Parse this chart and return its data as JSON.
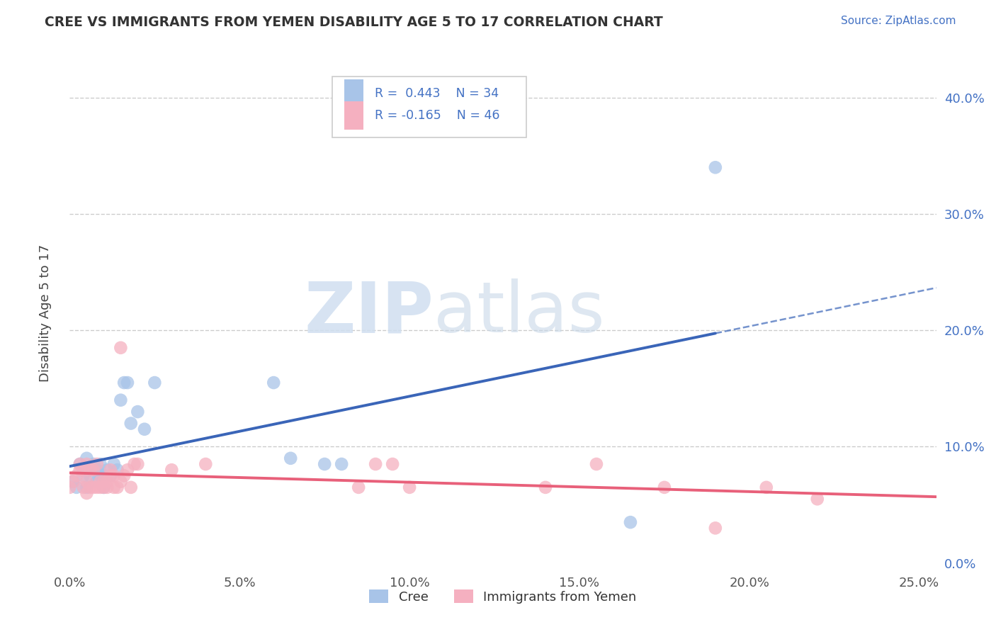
{
  "title": "CREE VS IMMIGRANTS FROM YEMEN DISABILITY AGE 5 TO 17 CORRELATION CHART",
  "source": "Source: ZipAtlas.com",
  "xlabel_ticks": [
    "0.0%",
    "5.0%",
    "10.0%",
    "15.0%",
    "20.0%",
    "25.0%"
  ],
  "ylabel_ticks": [
    "0.0%",
    "10.0%",
    "20.0%",
    "30.0%",
    "40.0%"
  ],
  "xlim": [
    0.0,
    0.255
  ],
  "ylim": [
    -0.005,
    0.435
  ],
  "cree_R": 0.443,
  "cree_N": 34,
  "yemen_R": -0.165,
  "yemen_N": 46,
  "cree_color": "#a8c4e8",
  "yemen_color": "#f5b0c0",
  "cree_line_color": "#3a65b8",
  "yemen_line_color": "#e8607a",
  "grid_color": "#cccccc",
  "background_color": "#ffffff",
  "cree_points_x": [
    0.001,
    0.002,
    0.003,
    0.004,
    0.004,
    0.005,
    0.005,
    0.006,
    0.006,
    0.007,
    0.007,
    0.008,
    0.008,
    0.009,
    0.009,
    0.01,
    0.01,
    0.011,
    0.012,
    0.013,
    0.014,
    0.015,
    0.016,
    0.017,
    0.018,
    0.02,
    0.022,
    0.025,
    0.06,
    0.065,
    0.075,
    0.08,
    0.165,
    0.19
  ],
  "cree_points_y": [
    0.07,
    0.065,
    0.085,
    0.075,
    0.08,
    0.065,
    0.09,
    0.075,
    0.08,
    0.08,
    0.085,
    0.07,
    0.08,
    0.075,
    0.085,
    0.065,
    0.075,
    0.08,
    0.075,
    0.085,
    0.08,
    0.14,
    0.155,
    0.155,
    0.12,
    0.13,
    0.115,
    0.155,
    0.155,
    0.09,
    0.085,
    0.085,
    0.035,
    0.34
  ],
  "yemen_points_x": [
    0.0,
    0.001,
    0.002,
    0.003,
    0.003,
    0.004,
    0.004,
    0.005,
    0.005,
    0.005,
    0.006,
    0.006,
    0.007,
    0.007,
    0.008,
    0.008,
    0.009,
    0.009,
    0.01,
    0.01,
    0.011,
    0.011,
    0.012,
    0.012,
    0.013,
    0.013,
    0.014,
    0.015,
    0.015,
    0.016,
    0.017,
    0.018,
    0.019,
    0.02,
    0.03,
    0.04,
    0.085,
    0.09,
    0.095,
    0.1,
    0.14,
    0.155,
    0.175,
    0.19,
    0.205,
    0.22
  ],
  "yemen_points_y": [
    0.065,
    0.07,
    0.075,
    0.08,
    0.085,
    0.065,
    0.08,
    0.06,
    0.07,
    0.085,
    0.065,
    0.08,
    0.065,
    0.08,
    0.065,
    0.085,
    0.065,
    0.07,
    0.065,
    0.07,
    0.065,
    0.07,
    0.075,
    0.08,
    0.065,
    0.075,
    0.065,
    0.07,
    0.185,
    0.075,
    0.08,
    0.065,
    0.085,
    0.085,
    0.08,
    0.085,
    0.065,
    0.085,
    0.085,
    0.065,
    0.065,
    0.085,
    0.065,
    0.03,
    0.065,
    0.055
  ],
  "legend_label1": "Cree",
  "legend_label2": "Immigrants from Yemen",
  "watermark_zip": "ZIP",
  "watermark_atlas": "atlas"
}
